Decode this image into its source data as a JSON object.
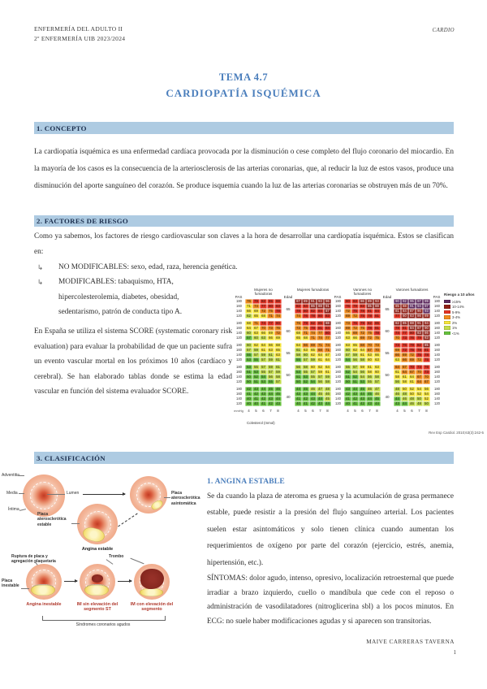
{
  "colors": {
    "heading_blue": "#4a7ebc",
    "section_bar_blue": "#aecbe2",
    "diagram_caption_red": "#b03a2e"
  },
  "header": {
    "left_line1": "ENFERMERÍA DEL ADULTO II",
    "left_line2": "2º ENFERMERÍA UIB 2023/2024",
    "right": "CARDIO"
  },
  "title": {
    "line1": "TEMA 4.7",
    "line2": "CARDIOPATÍA ISQUÉMICA"
  },
  "sections": {
    "concepto": {
      "heading": "1. CONCEPTO",
      "body": "La cardiopatía isquémica es una enfermedad cardíaca provocada por la disminución o cese completo del flujo coronario del miocardio. En la mayoría de los casos es la consecuencia de la arteriosclerosis de las arterias coronarias, que, al reducir la luz de estos vasos, produce una disminución del aporte sanguíneo del corazón. Se produce isquemia cuando la luz de las arterias coronarias se obstruyen más de un 70%."
    },
    "factores": {
      "heading": "2. FACTORES DE RIESGO",
      "intro": "Como ya sabemos, los factores de riesgo cardiovascular son claves a la hora de desarrollar una cardiopatía isquémica. Estos se clasifican en:",
      "bullet_glyph": "↳",
      "bullets": [
        "NO MODIFICABLES: sexo, edad, raza, herencia genética.",
        "MODIFICABLES: tabaquismo, HTA, hipercolesterolemia, diabetes, obesidad, sedentarismo, patrón de conducta tipo A."
      ],
      "score_text": "En España se utiliza el sistema SCORE (systematic coronary risk evaluation) para evaluar la probabilidad de que un paciente sufra un evento vascular mortal en los próximos 10 años (cardíaco y cerebral). Se han elaborado tablas donde se estima la edad vascular en función del sistema evaluador SCORE."
    },
    "clasificacion": {
      "heading": "3. CLASIFICACIÓN",
      "angina_heading": "1. ANGINA ESTABLE",
      "angina_body1": "Se da cuando la plaza de ateroma es gruesa y la acumulación de grasa permanece estable, puede resistir a la presión del flujo sanguíneo arterial. Los pacientes suelen estar asintomáticos y solo tienen clínica cuando aumentan los requerimientos de oxígeno por parte del corazón (ejercicio, estrés, anemia, hipertensión, etc.).",
      "angina_body2": "SÍNTOMAS: dolor agudo, intenso, opresivo, localización retroesternal que puede irradiar a brazo izquierdo, cuello o mandíbula que cede con el reposo o administración de vasodilatadores (nitroglicerina sbl) a los pocos minutos.  En ECG: no suele haber modificaciones agudas y si aparecen son transitorias."
    }
  },
  "footer": {
    "author": "MAIVE CARRERAS TAVERNA",
    "page": "1"
  },
  "diagram": {
    "adventitia": "Adventitia",
    "media": "Media",
    "intima": "Íntima",
    "lumen": "Lumen",
    "placa_asintomatica": "Placa aterosclerótica asintomática",
    "placa_estable": "Placa aterosclerótica estable",
    "angina_estable": "Angina estable",
    "ruptura": "Ruptura de placa y agregación plaquetaria",
    "trombo": "Trombo",
    "placa_inestable": "Placa inestable",
    "caption_left": "Angina inestable",
    "caption_mid": "IM sin elevación del segmento ST",
    "caption_right": "IM con elevación del segmento",
    "bracket_label": "Síndromes coronarios agudos"
  },
  "chart_data": {
    "type": "heatmap",
    "title": "Tabla SCORE de edad vascular",
    "pas_label": "PAS",
    "edad_label": "Edad",
    "mmhg_label": "mmHg",
    "xlabel": "Colesterol (mmol)",
    "x_ticks": [
      "4",
      "5",
      "6",
      "7",
      "8"
    ],
    "pas_values": [
      "180",
      "160",
      "140",
      "120"
    ],
    "age_labels": [
      "65",
      "60",
      "55",
      "50",
      "40"
    ],
    "caption": "Rev Esp Cardiol. 2010;63(3):242-5",
    "legend": {
      "title": "Riesgo a 10 años",
      "entries": [
        {
          "label": "≥15%",
          "color": "#5c2a5e"
        },
        {
          "label": "10-14%",
          "color": "#8f2016"
        },
        {
          "label": "5-9%",
          "color": "#e53323"
        },
        {
          "label": "3-4%",
          "color": "#f08c1e"
        },
        {
          "label": "2%",
          "color": "#f6e53a"
        },
        {
          "label": "1%",
          "color": "#c4dd4a"
        },
        {
          "label": "<1%",
          "color": "#66c23d"
        }
      ]
    },
    "color_key": {
      "P": "#5c2a5e",
      "D": "#8f2016",
      "R": "#e53323",
      "O": "#f08c1e",
      "Y": "#f6e53a",
      "L": "#c4dd4a",
      "G": "#66c23d"
    },
    "groups": [
      {
        "name": "Mujeres no fumadoras",
        "blocks": [
          {
            "age": "65",
            "colors": [
              "ORRRR",
              "YORRR",
              "YYOOR",
              "LYYOO"
            ],
            "values": [
              [
                76,
                79,
                82,
                85,
                88
              ],
              [
                71,
                74,
                77,
                80,
                83
              ],
              [
                66,
                69,
                72,
                75,
                78
              ],
              [
                62,
                65,
                68,
                71,
                74
              ]
            ]
          },
          {
            "age": "60",
            "colors": [
              "YORRR",
              "YYOOO",
              "LYYYO",
              "GLLYY"
            ],
            "values": [
              [
                68,
                71,
                74,
                77,
                80
              ],
              [
                64,
                67,
                70,
                73,
                76
              ],
              [
                60,
                63,
                66,
                69,
                72
              ],
              [
                57,
                60,
                63,
                66,
                69
              ]
            ]
          },
          {
            "age": "55",
            "colors": [
              "LYYYY",
              "LLYYY",
              "GLLLY",
              "GGLLL"
            ],
            "values": [
              [
                60,
                62,
                64,
                66,
                68
              ],
              [
                57,
                59,
                61,
                63,
                65
              ],
              [
                55,
                57,
                59,
                61,
                63
              ],
              [
                53,
                55,
                57,
                59,
                61
              ]
            ]
          },
          {
            "age": "50",
            "colors": [
              "GLLLL",
              "GGLLL",
              "GGGLL",
              "GGGGL"
            ],
            "values": [
              [
                53,
                55,
                57,
                59,
                61
              ],
              [
                51,
                53,
                55,
                57,
                59
              ],
              [
                50,
                52,
                54,
                56,
                58
              ],
              [
                50,
                51,
                53,
                55,
                57
              ]
            ]
          },
          {
            "age": "40",
            "colors": [
              "GGGGG",
              "GGGGG",
              "GGGGG",
              "GGGGG"
            ],
            "values": [
              [
                42,
                43,
                44,
                45,
                46
              ],
              [
                41,
                42,
                43,
                44,
                45
              ],
              [
                40,
                41,
                42,
                43,
                44
              ],
              [
                40,
                40,
                41,
                42,
                43
              ]
            ]
          }
        ]
      },
      {
        "name": "Mujeres fumadoras",
        "blocks": [
          {
            "age": "65",
            "colors": [
              "DDDDD",
              "RRDDD",
              "RRRRD",
              "ORRRR"
            ],
            "values": [
              [
                87,
                89,
                91,
                93,
                96
              ],
              [
                82,
                84,
                86,
                88,
                91
              ],
              [
                78,
                80,
                82,
                84,
                87
              ],
              [
                74,
                76,
                78,
                80,
                83
              ]
            ]
          },
          {
            "age": "60",
            "colors": [
              "ORRRD",
              "OORRR",
              "YOOOR",
              "YYOOO"
            ],
            "values": [
              [
                76,
                79,
                82,
                85,
                88
              ],
              [
                72,
                75,
                78,
                81,
                84
              ],
              [
                68,
                71,
                74,
                77,
                80
              ],
              [
                65,
                68,
                71,
                74,
                77
              ]
            ]
          },
          {
            "age": "55",
            "colors": [
              "YOOOO",
              "LYYOO",
              "LLYYY",
              "GLLYY"
            ],
            "values": [
              [
                64,
                66,
                69,
                71,
                74
              ],
              [
                61,
                63,
                65,
                68,
                71
              ],
              [
                58,
                60,
                62,
                64,
                67
              ],
              [
                55,
                57,
                59,
                61,
                64
              ]
            ]
          },
          {
            "age": "50",
            "colors": [
              "LLYYY",
              "GLLYY",
              "GGLLL",
              "GGGLL"
            ],
            "values": [
              [
                56,
                58,
                60,
                62,
                64
              ],
              [
                53,
                55,
                57,
                59,
                61
              ],
              [
                51,
                53,
                55,
                57,
                59
              ],
              [
                50,
                52,
                54,
                56,
                58
              ]
            ]
          },
          {
            "age": "40",
            "colors": [
              "GGLLL",
              "GGGLL",
              "GGGGL",
              "GGGGG"
            ],
            "values": [
              [
                44,
                45,
                46,
                47,
                48
              ],
              [
                42,
                43,
                44,
                45,
                46
              ],
              [
                41,
                42,
                43,
                44,
                45
              ],
              [
                40,
                41,
                42,
                43,
                44
              ]
            ]
          }
        ]
      },
      {
        "name": "Varones no fumadores",
        "blocks": [
          {
            "age": "65",
            "colors": [
              "RRDDD",
              "RRRDD",
              "ORRRR",
              "OORRR"
            ],
            "values": [
              [
                80,
                83,
                86,
                89,
                93
              ],
              [
                76,
                79,
                82,
                85,
                88
              ],
              [
                72,
                75,
                78,
                81,
                84
              ],
              [
                69,
                72,
                75,
                78,
                81
              ]
            ]
          },
          {
            "age": "60",
            "colors": [
              "ORRRR",
              "OOORR",
              "YOOOR",
              "YYOOO"
            ],
            "values": [
              [
                73,
                76,
                79,
                82,
                85
              ],
              [
                69,
                72,
                75,
                78,
                81
              ],
              [
                66,
                69,
                72,
                75,
                78
              ],
              [
                63,
                66,
                69,
                72,
                75
              ]
            ]
          },
          {
            "age": "55",
            "colors": [
              "YYOOO",
              "LYYOO",
              "LLYYY",
              "GLLYY"
            ],
            "values": [
              [
                63,
                65,
                68,
                70,
                73
              ],
              [
                60,
                62,
                64,
                67,
                70
              ],
              [
                57,
                59,
                61,
                63,
                66
              ],
              [
                54,
                56,
                58,
                60,
                63
              ]
            ]
          },
          {
            "age": "50",
            "colors": [
              "LLYYY",
              "GLLYY",
              "GGLLL",
              "GGGLL"
            ],
            "values": [
              [
                55,
                57,
                59,
                61,
                63
              ],
              [
                52,
                54,
                56,
                58,
                60
              ],
              [
                51,
                52,
                54,
                56,
                58
              ],
              [
                50,
                51,
                53,
                55,
                57
              ]
            ]
          },
          {
            "age": "40",
            "colors": [
              "GGGLL",
              "GGGGL",
              "GGGGG",
              "GGGGG"
            ],
            "values": [
              [
                43,
                44,
                45,
                46,
                47
              ],
              [
                42,
                43,
                44,
                45,
                46
              ],
              [
                41,
                42,
                43,
                44,
                45
              ],
              [
                40,
                41,
                42,
                43,
                44
              ]
            ]
          }
        ]
      },
      {
        "name": "Varones fumadores",
        "blocks": [
          {
            "age": "65",
            "colors": [
              "PPPPP",
              "DDPPP",
              "DDDDP",
              "RDDDD"
            ],
            "values": [
              [
                90,
                92,
                95,
                97,
                99
              ],
              [
                85,
                88,
                91,
                94,
                97
              ],
              [
                81,
                84,
                87,
                90,
                93
              ],
              [
                77,
                80,
                83,
                86,
                89
              ]
            ]
          },
          {
            "age": "60",
            "colors": [
              "DDDDD",
              "RRDDD",
              "RRRDD",
              "ORRRD"
            ],
            "values": [
              [
                82,
                85,
                88,
                91,
                94
              ],
              [
                78,
                81,
                84,
                87,
                90
              ],
              [
                74,
                77,
                80,
                83,
                86
              ],
              [
                70,
                73,
                76,
                79,
                83
              ]
            ]
          },
          {
            "age": "55",
            "colors": [
              "RRRRD",
              "ORRRR",
              "OOORR",
              "YOOOR"
            ],
            "values": [
              [
                73,
                76,
                79,
                82,
                85
              ],
              [
                69,
                72,
                75,
                78,
                81
              ],
              [
                66,
                69,
                72,
                75,
                78
              ],
              [
                63,
                66,
                69,
                72,
                75
              ]
            ]
          },
          {
            "age": "50",
            "colors": [
              "OORRR",
              "YOOOR",
              "YYYOO",
              "LYYOO"
            ],
            "values": [
              [
                64,
                67,
                70,
                73,
                76
              ],
              [
                61,
                64,
                67,
                70,
                73
              ],
              [
                58,
                61,
                64,
                67,
                70
              ],
              [
                56,
                58,
                61,
                64,
                67
              ]
            ]
          },
          {
            "age": "40",
            "colors": [
              "LYYYY",
              "LLYYY",
              "GLLLY",
              "GGLLL"
            ],
            "values": [
              [
                48,
                50,
                52,
                54,
                56
              ],
              [
                46,
                48,
                50,
                52,
                54
              ],
              [
                44,
                46,
                48,
                50,
                52
              ],
              [
                43,
                44,
                46,
                48,
                50
              ]
            ]
          }
        ]
      }
    ]
  }
}
